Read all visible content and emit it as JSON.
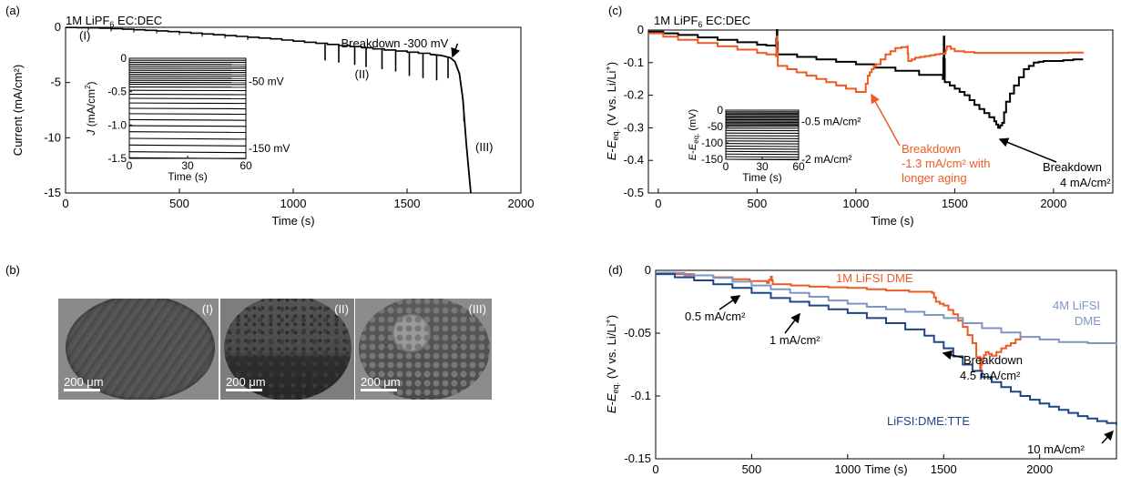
{
  "panels": {
    "a": {
      "label": "(a)"
    },
    "b": {
      "label": "(b)"
    },
    "c": {
      "label": "(c)"
    },
    "d": {
      "label": "(d)"
    }
  },
  "chart_data": [
    {
      "id": "a",
      "type": "line",
      "title": "1M LiPF6 EC:DEC",
      "xlabel": "Time (s)",
      "ylabel": "Current (mA/cm²)",
      "xlim": [
        0,
        2000
      ],
      "ylim": [
        -15,
        0
      ],
      "xticks": [
        0,
        500,
        1000,
        1500,
        2000
      ],
      "yticks": [
        0,
        -5,
        -10,
        -15
      ],
      "color": "#000000",
      "series": [
        {
          "x": [
            0,
            100,
            200,
            300,
            400,
            500,
            600,
            700,
            800,
            900,
            1000,
            1100,
            1200,
            1300,
            1400,
            1500,
            1600,
            1650,
            1690,
            1710,
            1730,
            1745,
            1760,
            1780
          ],
          "y": [
            -0.02,
            -0.05,
            -0.12,
            -0.22,
            -0.32,
            -0.45,
            -0.6,
            -0.75,
            -0.9,
            -1.05,
            -1.25,
            -1.45,
            -1.65,
            -1.85,
            -2.05,
            -2.25,
            -2.45,
            -2.55,
            -2.75,
            -3.1,
            -4.2,
            -6.5,
            -10.5,
            -15
          ]
        }
      ],
      "spikes": [
        {
          "x": 1140,
          "y_min": -3.0
        },
        {
          "x": 1200,
          "y_min": -3.2
        },
        {
          "x": 1270,
          "y_min": -3.4
        },
        {
          "x": 1320,
          "y_min": -3.6
        },
        {
          "x": 1390,
          "y_min": -3.8
        },
        {
          "x": 1450,
          "y_min": -4.0
        },
        {
          "x": 1510,
          "y_min": -4.4
        },
        {
          "x": 1570,
          "y_min": -4.6
        },
        {
          "x": 1630,
          "y_min": -4.8
        },
        {
          "x": 1680,
          "y_min": -4.6
        },
        {
          "x": 1750,
          "y_min": -8.5
        }
      ],
      "annotations": [
        {
          "text": "(I)",
          "x": 60,
          "y": -1.1
        },
        {
          "text": "(II)",
          "x": 1270,
          "y": -4.6
        },
        {
          "text": "(III)",
          "x": 1800,
          "y": -11.2
        },
        {
          "text": "Breakdown -300 mV",
          "x": 1210,
          "y": -1.8,
          "arrow_to": [
            1700,
            -2.65
          ]
        }
      ],
      "inset": {
        "xlabel": "Time (s)",
        "ylabel": "J (mA/cm²)",
        "xlim": [
          0,
          60
        ],
        "ylim": [
          -1.5,
          0
        ],
        "xticks": [
          0,
          30,
          60
        ],
        "yticks": [
          "0",
          "-0.5",
          "-1.0",
          "-1.5"
        ],
        "yticks_values": [
          0,
          -0.5,
          -1.0,
          -1.5
        ],
        "labels": [
          {
            "text": "-50 mV",
            "y": -0.35
          },
          {
            "text": "-150 mV",
            "y": -1.35
          }
        ],
        "line_levels": [
          -0.03,
          -0.06,
          -0.09,
          -0.12,
          -0.15,
          -0.18,
          -0.21,
          -0.24,
          -0.27,
          -0.3,
          -0.33,
          -0.36,
          -0.39,
          -0.43,
          -0.48,
          -0.54,
          -0.6,
          -0.67,
          -0.75,
          -0.83,
          -0.92,
          -1.01,
          -1.1,
          -1.2,
          -1.3,
          -1.4,
          -1.49
        ]
      }
    },
    {
      "id": "c",
      "type": "line",
      "title": "1M LiPF6 EC:DEC",
      "xlabel": "Time (s)",
      "ylabel": "E-Eeq. (V vs. Li/Li⁺)",
      "xlim": [
        -50,
        2300
      ],
      "ylim": [
        -0.5,
        0
      ],
      "xticks": [
        0,
        500,
        1000,
        1500,
        2000
      ],
      "yticks": [
        0,
        -0.1,
        -0.2,
        -0.3,
        -0.4,
        -0.5
      ],
      "series": [
        {
          "name": "black",
          "color": "#000000",
          "x": [
            -50,
            100,
            300,
            500,
            595,
            600,
            605,
            800,
            1000,
            1200,
            1440,
            1445,
            1450,
            1500,
            1550,
            1600,
            1650,
            1700,
            1720,
            1740,
            1760,
            1800,
            1850,
            1900,
            1950,
            2000,
            2100,
            2150
          ],
          "y": [
            -0.005,
            -0.015,
            -0.03,
            -0.045,
            -0.05,
            0,
            -0.075,
            -0.09,
            -0.105,
            -0.125,
            -0.15,
            -0.02,
            -0.16,
            -0.18,
            -0.2,
            -0.23,
            -0.255,
            -0.28,
            -0.3,
            -0.285,
            -0.22,
            -0.17,
            -0.12,
            -0.1,
            -0.095,
            -0.095,
            -0.09,
            -0.09
          ]
        },
        {
          "name": "orange",
          "color": "#ee5a24",
          "x": [
            -50,
            100,
            300,
            500,
            595,
            600,
            605,
            700,
            800,
            900,
            1000,
            1040,
            1060,
            1080,
            1100,
            1150,
            1200,
            1260,
            1265,
            1300,
            1350,
            1400,
            1450,
            1460,
            1500,
            1600,
            1700,
            1800,
            2000,
            2150
          ],
          "y": [
            -0.01,
            -0.03,
            -0.05,
            -0.07,
            -0.08,
            -0.02,
            -0.11,
            -0.13,
            -0.15,
            -0.17,
            -0.19,
            -0.19,
            -0.14,
            -0.12,
            -0.105,
            -0.075,
            -0.055,
            -0.05,
            -0.095,
            -0.085,
            -0.08,
            -0.075,
            -0.07,
            -0.05,
            -0.065,
            -0.07,
            -0.07,
            -0.07,
            -0.07,
            -0.068
          ]
        }
      ],
      "annotations": [
        {
          "text": "Breakdown",
          "color": "#ee5a24",
          "line": 1
        },
        {
          "text": "-1.3 mA/cm² with",
          "color": "#ee5a24",
          "line": 2
        },
        {
          "text": "longer aging",
          "color": "#ee5a24",
          "line": 3
        },
        {
          "text": "Breakdown",
          "color": "#000000",
          "line": 1
        },
        {
          "text": "4 mA/cm²",
          "color": "#000000",
          "line": 2
        }
      ],
      "inset": {
        "xlabel": "Time (s)",
        "ylabel": "E-Eeq. (mV)",
        "xlim": [
          0,
          60
        ],
        "ylim": [
          -150,
          0
        ],
        "xticks": [
          0,
          30,
          60
        ],
        "yticks": [
          "0",
          "-50",
          "-100",
          "-150"
        ],
        "yticks_values": [
          0,
          -50,
          -100,
          -150
        ],
        "labels": [
          {
            "text": "-0.5 mA/cm²",
            "y": -35
          },
          {
            "text": "-2 mA/cm²",
            "y": -150
          }
        ],
        "line_levels": [
          -5,
          -9,
          -13,
          -17,
          -21,
          -25,
          -29,
          -33,
          -37,
          -41,
          -45,
          -49,
          -55,
          -62,
          -70,
          -78,
          -86,
          -94,
          -102,
          -110,
          -118,
          -126,
          -134,
          -142,
          -150
        ]
      }
    },
    {
      "id": "d",
      "type": "line",
      "xlabel": "Time (s)",
      "ylabel": "E-Eeq. (V vs. Li/Li⁺)",
      "xlim": [
        0,
        2400
      ],
      "ylim": [
        -0.15,
        0
      ],
      "xticks": [
        0,
        500,
        1000,
        1500,
        2000
      ],
      "yticks": [
        0,
        -0.05,
        -0.1,
        -0.15
      ],
      "series": [
        {
          "name": "1M LiFSI DME",
          "color": "#ee5a24",
          "x": [
            0,
            200,
            400,
            580,
            600,
            610,
            800,
            1000,
            1200,
            1440,
            1460,
            1500,
            1550,
            1600,
            1650,
            1690,
            1700,
            1720,
            1750,
            1800,
            1850,
            1900
          ],
          "y": [
            -0.002,
            -0.004,
            -0.007,
            -0.01,
            -0.005,
            -0.011,
            -0.013,
            -0.014,
            -0.016,
            -0.018,
            -0.025,
            -0.028,
            -0.035,
            -0.045,
            -0.058,
            -0.08,
            -0.07,
            -0.065,
            -0.068,
            -0.062,
            -0.058,
            -0.052
          ]
        },
        {
          "name": "4M LiFSI DME",
          "color": "#7f95c4",
          "x": [
            0,
            300,
            500,
            700,
            900,
            1100,
            1300,
            1500,
            1700,
            1900,
            2100,
            2400
          ],
          "y": [
            -0.002,
            -0.006,
            -0.012,
            -0.018,
            -0.024,
            -0.029,
            -0.033,
            -0.038,
            -0.046,
            -0.053,
            -0.057,
            -0.059
          ]
        },
        {
          "name": "LiFSI:DME:TTE",
          "color": "#1f4586",
          "x": [
            0,
            200,
            400,
            600,
            800,
            1000,
            1200,
            1400,
            1500,
            1600,
            1700,
            1800,
            1900,
            2000,
            2100,
            2200,
            2300,
            2400
          ],
          "y": [
            -0.003,
            -0.008,
            -0.014,
            -0.022,
            -0.028,
            -0.034,
            -0.042,
            -0.052,
            -0.062,
            -0.075,
            -0.085,
            -0.093,
            -0.1,
            -0.106,
            -0.111,
            -0.116,
            -0.12,
            -0.123
          ]
        }
      ],
      "annotations": [
        {
          "text": "1M LiFSI DME",
          "color": "#ee5a24"
        },
        {
          "text": "4M LiFSI",
          "color": "#7f95c4"
        },
        {
          "text": "DME",
          "color": "#7f95c4"
        },
        {
          "text": "LiFSI:DME:TTE",
          "color": "#1f4586"
        },
        {
          "text": "0.5 mA/cm²",
          "color": "#000000"
        },
        {
          "text": "1 mA/cm²",
          "color": "#000000"
        },
        {
          "text": "Breakdown",
          "color": "#000000"
        },
        {
          "text": "4.5 mA/cm²",
          "color": "#000000"
        },
        {
          "text": "10 mA/cm²",
          "color": "#000000"
        }
      ]
    }
  ],
  "sem_images": [
    {
      "label": "(I)",
      "scale": "200 μm"
    },
    {
      "label": "(II)",
      "scale": "200 μm"
    },
    {
      "label": "(III)",
      "scale": "200 μm"
    }
  ]
}
